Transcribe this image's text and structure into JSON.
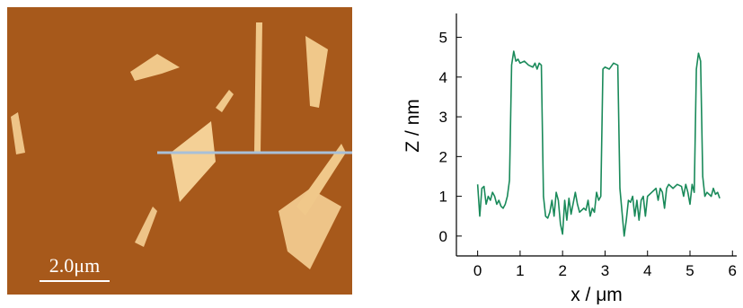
{
  "image": {
    "scale_bar": "2.0μm"
  },
  "chart_data": {
    "type": "line",
    "x_label": "x / μm",
    "y_label": "Z / nm",
    "xlim": [
      -0.5,
      6.1
    ],
    "xticks": [
      0,
      1,
      2,
      3,
      4,
      5,
      6
    ],
    "ylim": [
      -0.5,
      5.6
    ],
    "yticks": [
      0,
      1,
      2,
      3,
      4,
      5
    ],
    "series": [
      {
        "color": "#1a8a5a",
        "x": [
          0,
          0.05,
          0.1,
          0.15,
          0.2,
          0.25,
          0.3,
          0.35,
          0.4,
          0.45,
          0.5,
          0.55,
          0.6,
          0.65,
          0.7,
          0.75,
          0.8,
          0.85,
          0.9,
          0.95,
          1.0,
          1.1,
          1.2,
          1.3,
          1.35,
          1.4,
          1.45,
          1.5,
          1.55,
          1.6,
          1.65,
          1.7,
          1.75,
          1.8,
          1.85,
          1.9,
          1.95,
          2.0,
          2.05,
          2.1,
          2.15,
          2.2,
          2.3,
          2.35,
          2.4,
          2.5,
          2.55,
          2.6,
          2.65,
          2.7,
          2.75,
          2.8,
          2.85,
          2.9,
          2.95,
          3.0,
          3.1,
          3.2,
          3.3,
          3.35,
          3.4,
          3.45,
          3.5,
          3.55,
          3.6,
          3.65,
          3.7,
          3.75,
          3.8,
          3.85,
          3.9,
          3.95,
          4.0,
          4.1,
          4.2,
          4.25,
          4.3,
          4.35,
          4.4,
          4.45,
          4.5,
          4.6,
          4.7,
          4.8,
          4.85,
          4.9,
          4.95,
          5.0,
          5.05,
          5.1,
          5.15,
          5.2,
          5.25,
          5.3,
          5.35,
          5.4,
          5.5,
          5.55,
          5.6,
          5.65,
          5.7
        ],
        "values": [
          1.3,
          0.5,
          1.2,
          1.25,
          0.8,
          1.0,
          0.9,
          1.1,
          1.0,
          0.8,
          0.9,
          0.75,
          0.7,
          0.8,
          1.0,
          1.4,
          4.3,
          4.65,
          4.4,
          4.45,
          4.35,
          4.4,
          4.3,
          4.25,
          4.35,
          4.2,
          4.35,
          4.3,
          1.0,
          0.5,
          0.45,
          0.6,
          0.9,
          0.5,
          1.1,
          0.9,
          0.3,
          0.05,
          0.9,
          0.4,
          0.95,
          0.55,
          1.1,
          0.8,
          0.6,
          0.7,
          0.65,
          0.9,
          0.5,
          0.7,
          0.6,
          1.1,
          0.9,
          1.0,
          4.2,
          4.25,
          4.2,
          4.35,
          4.3,
          1.2,
          0.6,
          0.0,
          0.4,
          0.9,
          0.85,
          1.0,
          0.5,
          0.9,
          0.4,
          0.9,
          1.0,
          0.5,
          1.0,
          1.1,
          1.2,
          0.9,
          1.2,
          1.1,
          0.7,
          1.2,
          1.3,
          1.2,
          1.3,
          1.25,
          1.0,
          1.3,
          1.1,
          0.8,
          1.3,
          1.1,
          4.2,
          4.6,
          4.4,
          1.5,
          1.0,
          1.1,
          1.0,
          1.2,
          1.05,
          1.1,
          0.95
        ]
      }
    ]
  }
}
